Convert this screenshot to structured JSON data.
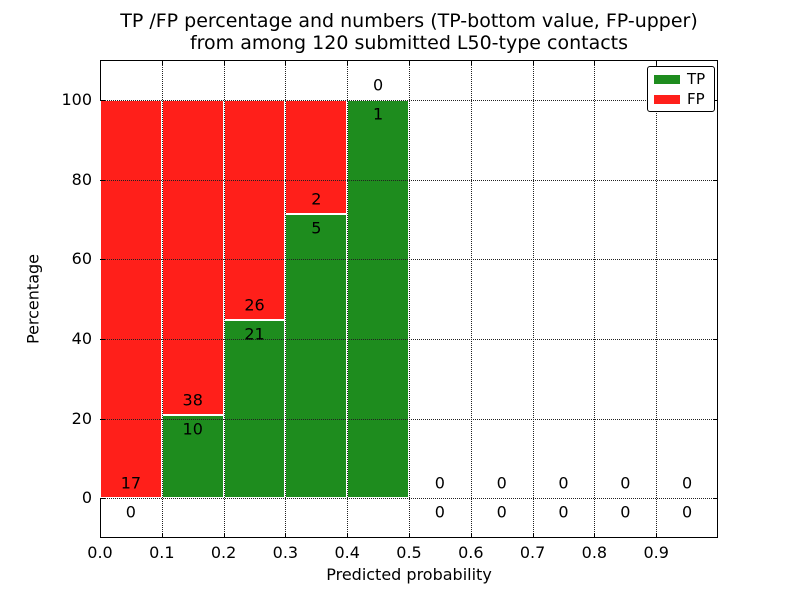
{
  "title": {
    "line1": "TP /FP percentage and numbers (TP-bottom value, FP-upper)",
    "line2": "from among 120 submitted L50-type contacts"
  },
  "chart_data": {
    "type": "bar",
    "stacked": true,
    "title": "TP /FP percentage and numbers (TP-bottom value, FP-upper)\nfrom among 120 submitted L50-type contacts",
    "xlabel": "Predicted probability",
    "ylabel": "Percentage",
    "xlim": [
      0.0,
      1.0
    ],
    "ylim": [
      -10,
      110
    ],
    "x_tick_values": [
      0.0,
      0.1,
      0.2,
      0.3,
      0.4,
      0.5,
      0.6,
      0.7,
      0.8,
      0.9
    ],
    "x_tick_labels": [
      "0.0",
      "0.1",
      "0.2",
      "0.3",
      "0.4",
      "0.5",
      "0.6",
      "0.7",
      "0.8",
      "0.9"
    ],
    "y_tick_values": [
      0,
      20,
      40,
      60,
      80,
      100
    ],
    "y_tick_labels": [
      "0",
      "20",
      "40",
      "60",
      "80",
      "100"
    ],
    "grid": true,
    "total_contacts": 120,
    "colors": {
      "tp": "#1e8c1e",
      "fp": "#ff1f1a"
    },
    "bins": [
      {
        "x_start": 0.0,
        "x_end": 0.1,
        "tp": 0,
        "fp": 17
      },
      {
        "x_start": 0.1,
        "x_end": 0.2,
        "tp": 10,
        "fp": 38
      },
      {
        "x_start": 0.2,
        "x_end": 0.3,
        "tp": 21,
        "fp": 26
      },
      {
        "x_start": 0.3,
        "x_end": 0.4,
        "tp": 5,
        "fp": 2
      },
      {
        "x_start": 0.4,
        "x_end": 0.5,
        "tp": 1,
        "fp": 0
      },
      {
        "x_start": 0.5,
        "x_end": 0.6,
        "tp": 0,
        "fp": 0
      },
      {
        "x_start": 0.6,
        "x_end": 0.7,
        "tp": 0,
        "fp": 0
      },
      {
        "x_start": 0.7,
        "x_end": 0.8,
        "tp": 0,
        "fp": 0
      },
      {
        "x_start": 0.8,
        "x_end": 0.9,
        "tp": 0,
        "fp": 0
      },
      {
        "x_start": 0.9,
        "x_end": 1.0,
        "tp": 0,
        "fp": 0
      }
    ],
    "legend": {
      "position": "upper right",
      "entries": [
        {
          "label": "TP",
          "color": "#1e8c1e"
        },
        {
          "label": "FP",
          "color": "#ff1f1a"
        }
      ]
    }
  }
}
